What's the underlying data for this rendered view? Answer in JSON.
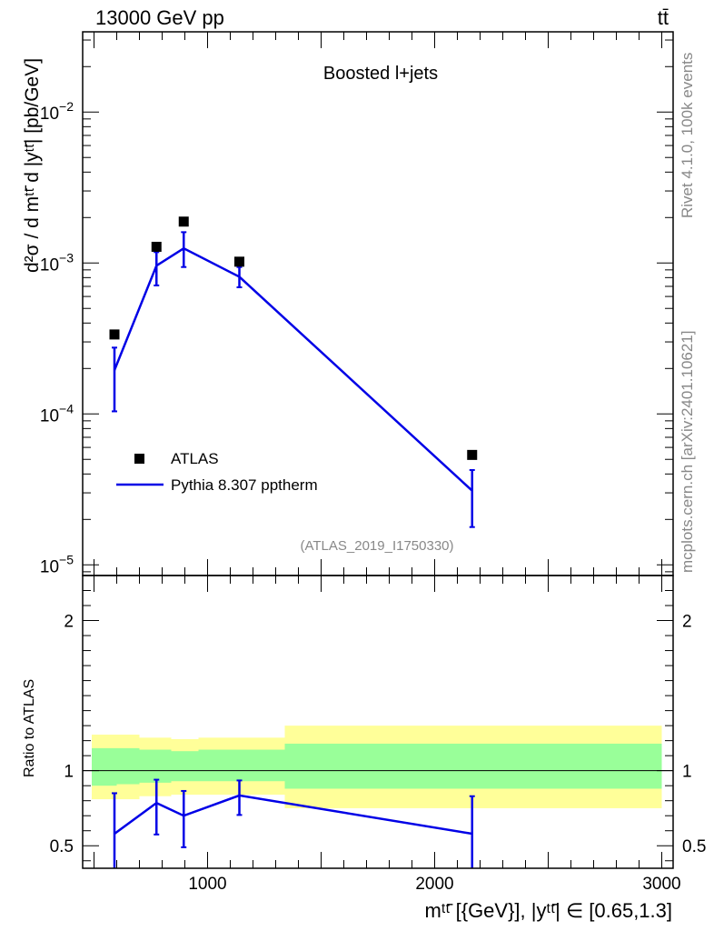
{
  "header": {
    "energy_label": "13000 GeV pp",
    "process_label": "tt̄"
  },
  "side_labels": {
    "rivet": "Rivet 4.1.0,  100k events",
    "source": "mcplots.cern.ch [arXiv:2401.10621]"
  },
  "chart_data": [
    {
      "type": "line",
      "panel": "main",
      "title": "Boosted l+jets",
      "annotation": "(ATLAS_2019_I1750330)",
      "ylabel": "d²σ / d mᵗᵗ̄ d |yᵗᵗ̄| [pb/GeV]",
      "yscale": "log",
      "xlim": [
        450,
        3050
      ],
      "ylim": [
        8.5e-06,
        0.034
      ],
      "ytick_labels": [
        {
          "value": 1e-05,
          "base": "10",
          "exp": "−5"
        },
        {
          "value": 0.0001,
          "base": "10",
          "exp": "−4"
        },
        {
          "value": 0.001,
          "base": "10",
          "exp": "−3"
        },
        {
          "value": 0.01,
          "base": "10",
          "exp": "−2"
        }
      ],
      "legend": [
        "ATLAS",
        "Pythia 8.307 pptherm"
      ],
      "series": [
        {
          "name": "ATLAS",
          "style": "markers",
          "x": [
            590,
            775,
            895,
            1140,
            2165
          ],
          "y": [
            0.000336,
            0.00128,
            0.00188,
            0.00102,
            5.35e-05
          ]
        },
        {
          "name": "Pythia 8.307 pptherm",
          "style": "line",
          "color": "#0000e6",
          "x": [
            590,
            775,
            895,
            1140,
            2165
          ],
          "y": [
            0.000195,
            0.00096,
            0.00125,
            0.00081,
            3.1e-05
          ],
          "err_lo": [
            9.1e-05,
            0.00025,
            0.00031,
            0.00012,
            1.32e-05
          ],
          "err_hi": [
            8e-05,
            0.00022,
            0.00035,
            0.00013,
            1.15e-05
          ]
        }
      ]
    },
    {
      "type": "line",
      "panel": "ratio",
      "ylabel": "Ratio to ATLAS",
      "xlabel": "mᵗᵗ̄ [{GeV}], |yᵗᵗ̄| ∈ [0.65,1.3]",
      "xlim": [
        450,
        3050
      ],
      "ylim": [
        0.35,
        2.3
      ],
      "xtick_labels": [
        "1000",
        "2000",
        "3000"
      ],
      "xtick_values": [
        1000,
        2000,
        3000
      ],
      "ytick_labels": [
        "0.5",
        "1",
        "2"
      ],
      "ytick_values": [
        0.5,
        1,
        2
      ],
      "uncertainty_bands": {
        "colors": {
          "outer": "#ffff99",
          "inner": "#99ff99"
        },
        "bins": [
          {
            "x0": 490,
            "x1": 600,
            "outer": [
              0.81,
              1.24
            ],
            "inner": [
              0.9,
              1.15
            ]
          },
          {
            "x0": 600,
            "x1": 700,
            "outer": [
              0.81,
              1.24
            ],
            "inner": [
              0.91,
              1.15
            ]
          },
          {
            "x0": 700,
            "x1": 840,
            "outer": [
              0.83,
              1.22
            ],
            "inner": [
              0.92,
              1.14
            ]
          },
          {
            "x0": 840,
            "x1": 960,
            "outer": [
              0.84,
              1.21
            ],
            "inner": [
              0.93,
              1.13
            ]
          },
          {
            "x0": 960,
            "x1": 1340,
            "outer": [
              0.84,
              1.22
            ],
            "inner": [
              0.93,
              1.14
            ]
          },
          {
            "x0": 1340,
            "x1": 3000,
            "outer": [
              0.75,
              1.3
            ],
            "inner": [
              0.88,
              1.18
            ]
          }
        ]
      },
      "reference_line": 1,
      "series": [
        {
          "name": "Pythia 8.307 pptherm / ATLAS",
          "color": "#0000e6",
          "x": [
            590,
            775,
            895,
            1140,
            2165
          ],
          "y": [
            0.58,
            0.785,
            0.7,
            0.835,
            0.58
          ],
          "err_lo": [
            0.3,
            0.21,
            0.21,
            0.13,
            0.3
          ],
          "err_hi": [
            0.27,
            0.155,
            0.165,
            0.1,
            0.25
          ]
        }
      ]
    }
  ]
}
